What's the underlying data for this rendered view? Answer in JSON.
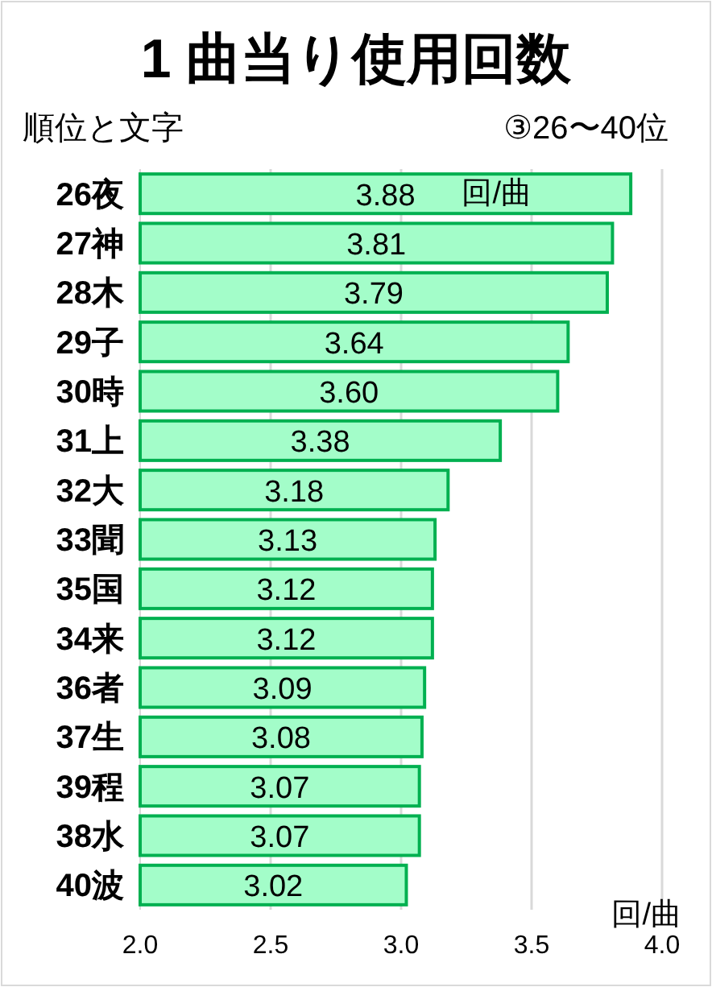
{
  "chart_data": {
    "type": "bar",
    "orientation": "horizontal",
    "title": "1 曲当り使用回数",
    "subtitle": "③26〜40位",
    "ylabel": "順位と文字",
    "xlabel": "回/曲",
    "annotations": [
      "回/曲"
    ],
    "categories": [
      "26夜",
      "27神",
      "28木",
      "29子",
      "30時",
      "31上",
      "32大",
      "33聞",
      "35国",
      "34来",
      "36者",
      "37生",
      "39程",
      "38水",
      "40波"
    ],
    "values": [
      3.88,
      3.81,
      3.79,
      3.64,
      3.6,
      3.38,
      3.18,
      3.13,
      3.12,
      3.12,
      3.09,
      3.08,
      3.07,
      3.07,
      3.02
    ],
    "value_labels": [
      "3.88",
      "3.81",
      "3.79",
      "3.64",
      "3.60",
      "3.38",
      "3.18",
      "3.13",
      "3.12",
      "3.12",
      "3.09",
      "3.08",
      "3.07",
      "3.07",
      "3.02"
    ],
    "color": "#a3fdc9",
    "xlim": [
      2.0,
      4.0
    ],
    "xticks": [
      {
        "value": 2.0,
        "label": "2.0"
      },
      {
        "value": 2.5,
        "label": "2.5"
      },
      {
        "value": 3.0,
        "label": "3.0"
      },
      {
        "value": 3.5,
        "label": "3.5"
      },
      {
        "value": 4.0,
        "label": "4.0"
      }
    ],
    "grid": "x"
  }
}
